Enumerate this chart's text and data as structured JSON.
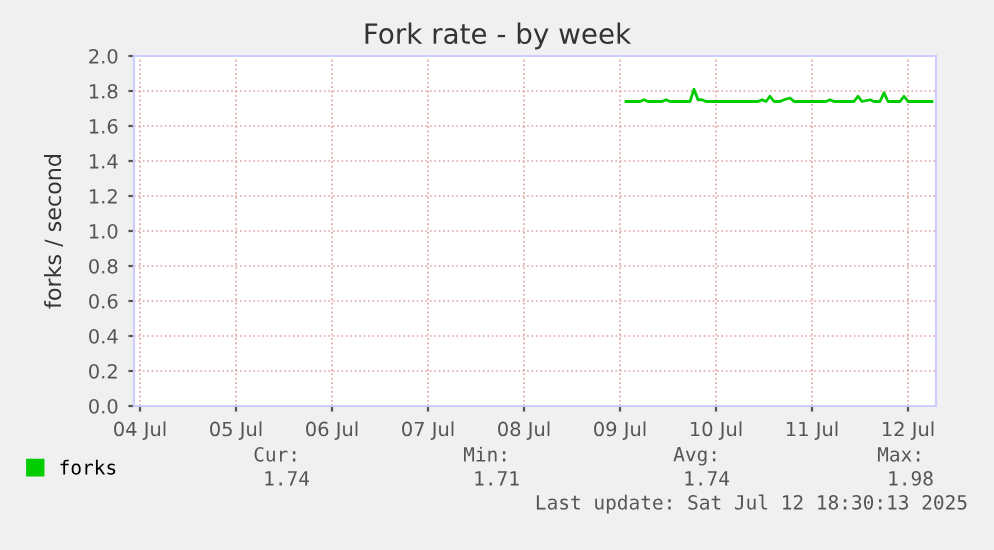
{
  "chart_data": {
    "type": "line",
    "title": "Fork rate - by week",
    "ylabel": "forks / second",
    "xlim": [
      "2025-07-04T10:30",
      "2025-07-12T19:00"
    ],
    "xticks": [
      {
        "value": "2025-07-04T12:00",
        "label": "04 Jul"
      },
      {
        "value": "2025-07-05T12:00",
        "label": "05 Jul"
      },
      {
        "value": "2025-07-06T12:00",
        "label": "06 Jul"
      },
      {
        "value": "2025-07-07T12:00",
        "label": "07 Jul"
      },
      {
        "value": "2025-07-08T12:00",
        "label": "08 Jul"
      },
      {
        "value": "2025-07-09T12:00",
        "label": "09 Jul"
      },
      {
        "value": "2025-07-10T12:00",
        "label": "10 Jul"
      },
      {
        "value": "2025-07-11T12:00",
        "label": "11 Jul"
      },
      {
        "value": "2025-07-12T12:00",
        "label": "12 Jul"
      }
    ],
    "ylim": [
      0,
      2.0
    ],
    "yticks": [
      {
        "value": 0,
        "label": "0.0"
      },
      {
        "value": 0.2,
        "label": "0.2"
      },
      {
        "value": 0.4,
        "label": "0.4"
      },
      {
        "value": 0.6,
        "label": "0.6"
      },
      {
        "value": 0.8,
        "label": "0.8"
      },
      {
        "value": 1.0,
        "label": "1.0"
      },
      {
        "value": 1.2,
        "label": "1.2"
      },
      {
        "value": 1.4,
        "label": "1.4"
      },
      {
        "value": 1.6,
        "label": "1.6"
      },
      {
        "value": 1.8,
        "label": "1.8"
      },
      {
        "value": 2.0,
        "label": "2.0"
      }
    ],
    "grid": true,
    "legend": "bottom left",
    "series": [
      {
        "name": "forks",
        "color": "#00cc00",
        "x": [
          "2025-07-09T13:30",
          "2025-07-09T17:00",
          "2025-07-09T18:00",
          "2025-07-09T19:00",
          "2025-07-09T22:30",
          "2025-07-09T23:30",
          "2025-07-10T00:30",
          "2025-07-10T05:30",
          "2025-07-10T06:30",
          "2025-07-10T07:30",
          "2025-07-10T08:30",
          "2025-07-10T09:30",
          "2025-07-10T22:30",
          "2025-07-10T23:30",
          "2025-07-11T00:30",
          "2025-07-11T01:30",
          "2025-07-11T02:30",
          "2025-07-11T04:00",
          "2025-07-11T05:00",
          "2025-07-11T06:30",
          "2025-07-11T07:30",
          "2025-07-11T15:30",
          "2025-07-11T16:30",
          "2025-07-11T17:30",
          "2025-07-11T22:30",
          "2025-07-11T23:30",
          "2025-07-12T00:30",
          "2025-07-12T02:30",
          "2025-07-12T03:30",
          "2025-07-12T05:00",
          "2025-07-12T06:00",
          "2025-07-12T07:00",
          "2025-07-12T10:00",
          "2025-07-12T11:00",
          "2025-07-12T12:00",
          "2025-07-12T18:00"
        ],
        "values": [
          1.74,
          1.74,
          1.75,
          1.74,
          1.74,
          1.75,
          1.74,
          1.74,
          1.81,
          1.75,
          1.75,
          1.74,
          1.74,
          1.75,
          1.74,
          1.77,
          1.74,
          1.74,
          1.75,
          1.76,
          1.74,
          1.74,
          1.75,
          1.74,
          1.74,
          1.77,
          1.74,
          1.75,
          1.74,
          1.74,
          1.79,
          1.74,
          1.74,
          1.77,
          1.74,
          1.74
        ]
      }
    ],
    "annotations": [
      "Cur:",
      "Min:",
      "Avg:",
      "Max:",
      "1.74",
      "1.71",
      "1.74",
      "1.98",
      "Last update: Sat Jul 12 18:30:13 2025"
    ]
  }
}
